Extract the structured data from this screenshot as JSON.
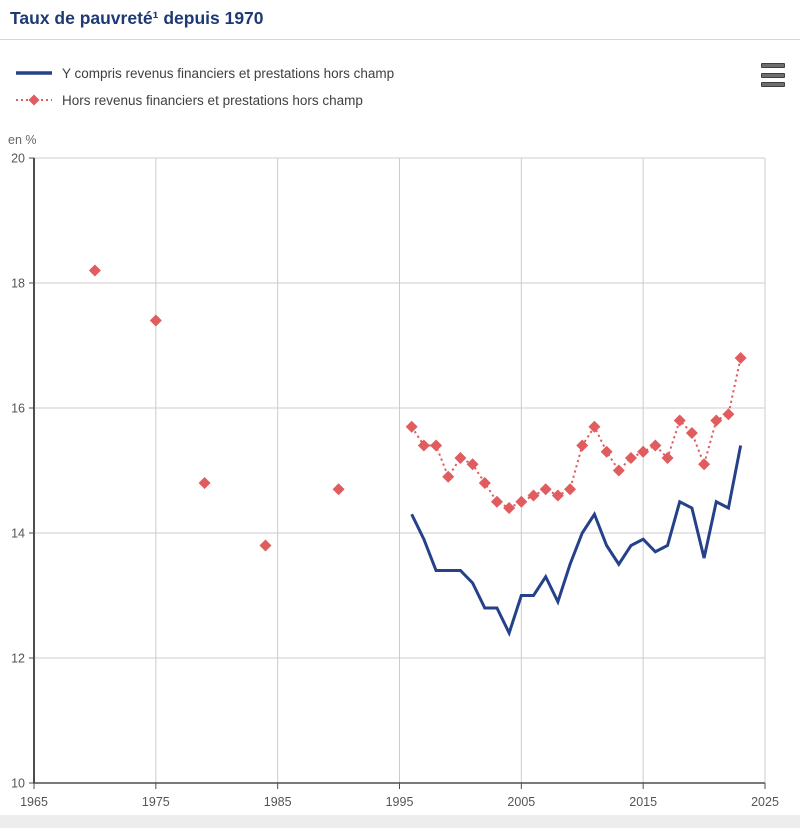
{
  "title": "Taux de pauvreté¹ depuis 1970",
  "unit_label": "en %",
  "menu": {
    "tooltip": "Menu"
  },
  "legend": [
    {
      "label": "Y compris revenus financiers et prestations hors champ"
    },
    {
      "label": "Hors revenus financiers et prestations hors champ"
    }
  ],
  "colors": {
    "title": "#1e3a75",
    "blue_line": "#25418a",
    "red_series": "#e05c5e",
    "gridline": "#cccccc",
    "axis": "#4d4d4d",
    "tick_label": "#555555"
  },
  "chart_data": {
    "type": "line",
    "title": "Taux de pauvreté¹ depuis 1970",
    "xlabel": "",
    "ylabel": "en %",
    "xlim": [
      1965,
      2025
    ],
    "ylim": [
      10,
      20
    ],
    "x_ticks": [
      1965,
      1975,
      1985,
      1995,
      2005,
      2015,
      2025
    ],
    "y_ticks": [
      10,
      12,
      14,
      16,
      18,
      20
    ],
    "grid": true,
    "legend_position": "top-left",
    "series": [
      {
        "name": "Y compris revenus financiers et prestations hors champ",
        "style": "solid-line",
        "color": "#25418a",
        "points": [
          [
            1996,
            14.3
          ],
          [
            1997,
            13.9
          ],
          [
            1998,
            13.4
          ],
          [
            1999,
            13.4
          ],
          [
            2000,
            13.4
          ],
          [
            2001,
            13.2
          ],
          [
            2002,
            12.8
          ],
          [
            2003,
            12.8
          ],
          [
            2004,
            12.4
          ],
          [
            2005,
            13.0
          ],
          [
            2006,
            13.0
          ],
          [
            2007,
            13.3
          ],
          [
            2008,
            12.9
          ],
          [
            2009,
            13.5
          ],
          [
            2010,
            14.0
          ],
          [
            2011,
            14.3
          ],
          [
            2012,
            13.8
          ],
          [
            2013,
            13.5
          ],
          [
            2014,
            13.8
          ],
          [
            2015,
            13.9
          ],
          [
            2016,
            13.7
          ],
          [
            2017,
            13.8
          ],
          [
            2018,
            14.5
          ],
          [
            2019,
            14.4
          ],
          [
            2020,
            13.6
          ],
          [
            2021,
            14.5
          ],
          [
            2022,
            14.4
          ],
          [
            2023,
            15.4
          ]
        ]
      },
      {
        "name": "Hors revenus financiers et prestations hors champ",
        "style": "dotted-line-diamond-markers",
        "color": "#e05c5e",
        "isolated_points": [
          [
            1970,
            18.2
          ],
          [
            1975,
            17.4
          ],
          [
            1979,
            14.8
          ],
          [
            1984,
            13.8
          ],
          [
            1990,
            14.7
          ]
        ],
        "points": [
          [
            1996,
            15.7
          ],
          [
            1997,
            15.4
          ],
          [
            1998,
            15.4
          ],
          [
            1999,
            14.9
          ],
          [
            2000,
            15.2
          ],
          [
            2001,
            15.1
          ],
          [
            2002,
            14.8
          ],
          [
            2003,
            14.5
          ],
          [
            2004,
            14.4
          ],
          [
            2005,
            14.5
          ],
          [
            2006,
            14.6
          ],
          [
            2007,
            14.7
          ],
          [
            2008,
            14.6
          ],
          [
            2009,
            14.7
          ],
          [
            2010,
            15.4
          ],
          [
            2011,
            15.7
          ],
          [
            2012,
            15.3
          ],
          [
            2013,
            15.0
          ],
          [
            2014,
            15.2
          ],
          [
            2015,
            15.3
          ],
          [
            2016,
            15.4
          ],
          [
            2017,
            15.2
          ],
          [
            2018,
            15.8
          ],
          [
            2019,
            15.6
          ],
          [
            2020,
            15.1
          ],
          [
            2021,
            15.8
          ],
          [
            2022,
            15.9
          ],
          [
            2023,
            16.8
          ]
        ]
      }
    ]
  }
}
